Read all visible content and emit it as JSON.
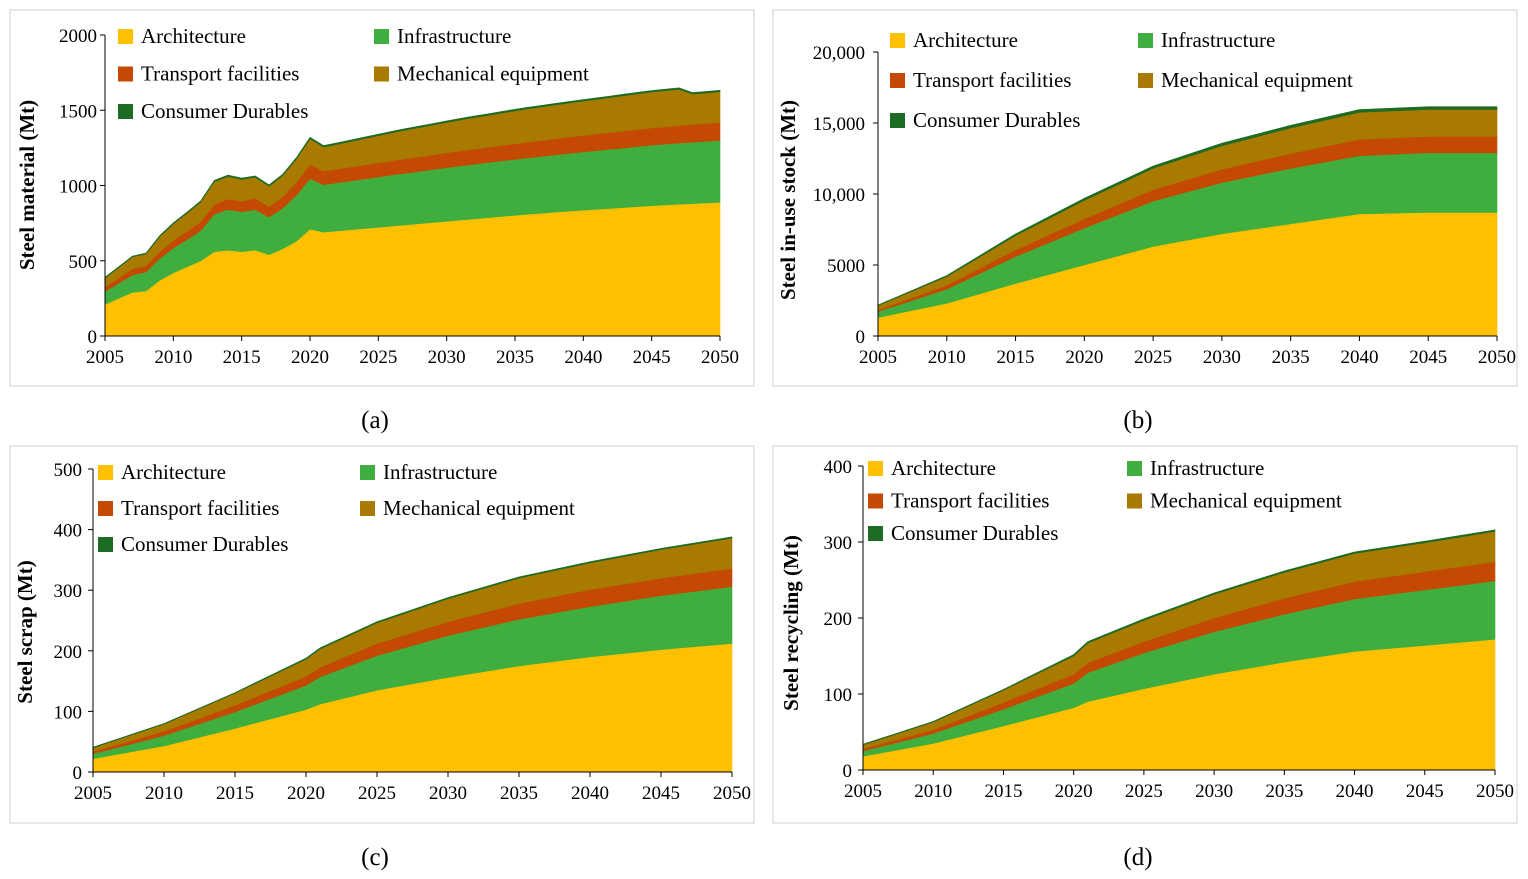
{
  "colors": {
    "Architecture": "#ffc000",
    "Infrastructure": "#3fae3f",
    "Transport facilities": "#c44a04",
    "Mechanical equipment": "#a87a00",
    "Consumer Durables": "#1e6b23"
  },
  "chart_data": [
    {
      "type": "area",
      "stacked": true,
      "panel_label": "(a)",
      "ylabel": "Steel material  (Mt)",
      "xlabel": "",
      "xlim": [
        2005,
        2050
      ],
      "ylim": [
        0,
        2000
      ],
      "xticks": [
        2005,
        2010,
        2015,
        2020,
        2025,
        2030,
        2035,
        2040,
        2045,
        2050
      ],
      "yticks": [
        0,
        500,
        1000,
        1500,
        2000
      ],
      "ytick_labels": [
        "0",
        "500",
        "1000",
        "1500",
        "2000"
      ],
      "legend": [
        "Architecture",
        "Infrastructure",
        "Transport facilities",
        "Mechanical equipment",
        "Consumer Durables"
      ],
      "x": [
        2005,
        2006,
        2007,
        2008,
        2009,
        2010,
        2011,
        2012,
        2013,
        2014,
        2015,
        2016,
        2017,
        2018,
        2019,
        2020,
        2021,
        2022,
        2023,
        2024,
        2025,
        2026,
        2027,
        2028,
        2029,
        2030,
        2031,
        2032,
        2033,
        2034,
        2035,
        2036,
        2037,
        2038,
        2039,
        2040,
        2041,
        2042,
        2043,
        2044,
        2045,
        2046,
        2047,
        2048,
        2049,
        2050
      ],
      "series": [
        {
          "name": "Architecture",
          "values": [
            210,
            250,
            290,
            300,
            370,
            420,
            460,
            500,
            560,
            570,
            560,
            570,
            540,
            580,
            630,
            710,
            690,
            698,
            706,
            714,
            722,
            730,
            738,
            746,
            754,
            762,
            770,
            778,
            786,
            794,
            802,
            809,
            816,
            823,
            830,
            836,
            842,
            848,
            854,
            860,
            866,
            871,
            876,
            880,
            884,
            888
          ]
        },
        {
          "name": "Infrastructure",
          "values": [
            85,
            100,
            115,
            125,
            145,
            165,
            180,
            200,
            250,
            270,
            265,
            270,
            250,
            270,
            305,
            335,
            315,
            320,
            325,
            330,
            335,
            340,
            344,
            348,
            352,
            356,
            360,
            363,
            366,
            369,
            372,
            375,
            378,
            381,
            384,
            387,
            390,
            393,
            396,
            399,
            402,
            404,
            406,
            408,
            410,
            412
          ]
        },
        {
          "name": "Transport facilities",
          "values": [
            30,
            35,
            40,
            40,
            45,
            50,
            55,
            60,
            65,
            70,
            70,
            75,
            70,
            75,
            85,
            95,
            90,
            91,
            92,
            93,
            94,
            95,
            96,
            97,
            98,
            99,
            100,
            101,
            102,
            103,
            104,
            105,
            106,
            107,
            108,
            109,
            110,
            111,
            112,
            113,
            114,
            115,
            116,
            117,
            118,
            119
          ]
        },
        {
          "name": "Mechanical equipment",
          "values": [
            60,
            70,
            80,
            80,
            100,
            110,
            120,
            130,
            150,
            150,
            145,
            140,
            135,
            140,
            155,
            170,
            160,
            165,
            170,
            175,
            180,
            185,
            190,
            194,
            198,
            202,
            206,
            209,
            212,
            215,
            218,
            221,
            223,
            225,
            227,
            229,
            231,
            233,
            235,
            237,
            239,
            240,
            241,
            202,
            203,
            204
          ]
        },
        {
          "name": "Consumer Durables",
          "values": [
            5,
            5,
            6,
            6,
            7,
            7,
            8,
            8,
            9,
            9,
            9,
            9,
            9,
            10,
            10,
            10,
            10,
            10,
            10,
            10,
            10,
            10,
            10,
            10,
            10,
            10,
            10,
            10,
            10,
            10,
            10,
            10,
            10,
            10,
            10,
            10,
            10,
            10,
            10,
            10,
            10,
            10,
            10,
            10,
            10,
            10
          ]
        }
      ]
    },
    {
      "type": "area",
      "stacked": true,
      "panel_label": "(b)",
      "ylabel": "Steel in-use stock (Mt)",
      "xlabel": "",
      "xlim": [
        2005,
        2050
      ],
      "ylim": [
        0,
        20000
      ],
      "xticks": [
        2005,
        2010,
        2015,
        2020,
        2025,
        2030,
        2035,
        2040,
        2045,
        2050
      ],
      "yticks": [
        0,
        5000,
        10000,
        15000,
        20000
      ],
      "ytick_labels": [
        "0",
        "5000",
        "10,000",
        "15,000",
        "20,000"
      ],
      "legend": [
        "Architecture",
        "Infrastructure",
        "Transport facilities",
        "Mechanical equipment",
        "Consumer Durables"
      ],
      "x": [
        2005,
        2010,
        2015,
        2020,
        2025,
        2030,
        2035,
        2040,
        2045,
        2050
      ],
      "series": [
        {
          "name": "Architecture",
          "values": [
            1300,
            2300,
            3700,
            5000,
            6300,
            7200,
            7900,
            8600,
            8700,
            8700
          ]
        },
        {
          "name": "Infrastructure",
          "values": [
            420,
            1000,
            1900,
            2600,
            3200,
            3600,
            3900,
            4100,
            4200,
            4200
          ]
        },
        {
          "name": "Transport facilities",
          "values": [
            120,
            280,
            470,
            650,
            800,
            950,
            1050,
            1150,
            1150,
            1150
          ]
        },
        {
          "name": "Mechanical equipment",
          "values": [
            300,
            600,
            1000,
            1300,
            1500,
            1650,
            1800,
            1900,
            1900,
            1900
          ]
        },
        {
          "name": "Consumer Durables",
          "values": [
            40,
            80,
            120,
            150,
            170,
            180,
            190,
            200,
            200,
            200
          ]
        }
      ]
    },
    {
      "type": "area",
      "stacked": true,
      "panel_label": "(c)",
      "ylabel": "Steel scrap  (Mt)",
      "xlabel": "",
      "xlim": [
        2005,
        2050
      ],
      "ylim": [
        0,
        500
      ],
      "xticks": [
        2005,
        2010,
        2015,
        2020,
        2025,
        2030,
        2035,
        2040,
        2045,
        2050
      ],
      "yticks": [
        0,
        100,
        200,
        300,
        400,
        500
      ],
      "ytick_labels": [
        "0",
        "100",
        "200",
        "300",
        "400",
        "500"
      ],
      "legend": [
        "Architecture",
        "Infrastructure",
        "Transport facilities",
        "Mechanical equipment",
        "Consumer Durables"
      ],
      "x": [
        2005,
        2010,
        2015,
        2020,
        2021,
        2025,
        2030,
        2035,
        2040,
        2045,
        2050
      ],
      "series": [
        {
          "name": "Architecture",
          "values": [
            22,
            43,
            72,
            103,
            112,
            135,
            156,
            175,
            190,
            202,
            212
          ]
        },
        {
          "name": "Infrastructure",
          "values": [
            8,
            17,
            27,
            40,
            45,
            57,
            69,
            77,
            83,
            89,
            94
          ]
        },
        {
          "name": "Transport facilities",
          "values": [
            4,
            7,
            11,
            15,
            16,
            20,
            23,
            26,
            28,
            29,
            30
          ]
        },
        {
          "name": "Mechanical equipment",
          "values": [
            6,
            12,
            20,
            28,
            30,
            34,
            38,
            42,
            44,
            47,
            50
          ]
        },
        {
          "name": "Consumer Durables",
          "values": [
            1,
            1,
            1,
            2,
            2,
            2,
            2,
            2,
            2,
            2,
            2
          ]
        }
      ]
    },
    {
      "type": "area",
      "stacked": true,
      "panel_label": "(d)",
      "ylabel": "Steel recycling  (Mt)",
      "xlabel": "",
      "xlim": [
        2005,
        2050
      ],
      "ylim": [
        0,
        400
      ],
      "xticks": [
        2005,
        2010,
        2015,
        2020,
        2025,
        2030,
        2035,
        2040,
        2045,
        2050
      ],
      "yticks": [
        0,
        100,
        200,
        300,
        400
      ],
      "ytick_labels": [
        "0",
        "100",
        "200",
        "300",
        "400"
      ],
      "legend": [
        "Architecture",
        "Infrastructure",
        "Transport facilities",
        "Mechanical equipment",
        "Consumer Durables"
      ],
      "x": [
        2005,
        2010,
        2015,
        2020,
        2021,
        2025,
        2030,
        2035,
        2040,
        2045,
        2050
      ],
      "series": [
        {
          "name": "Architecture",
          "values": [
            18,
            35,
            58,
            82,
            90,
            107,
            126,
            142,
            156,
            164,
            172
          ]
        },
        {
          "name": "Infrastructure",
          "values": [
            7,
            13,
            22,
            32,
            38,
            47,
            56,
            63,
            69,
            73,
            77
          ]
        },
        {
          "name": "Transport facilities",
          "values": [
            3,
            5,
            9,
            12,
            13,
            15,
            18,
            21,
            23,
            24,
            25
          ]
        },
        {
          "name": "Mechanical equipment",
          "values": [
            5,
            10,
            16,
            24,
            26,
            28,
            31,
            34,
            37,
            38,
            40
          ]
        },
        {
          "name": "Consumer Durables",
          "values": [
            1,
            1,
            1,
            2,
            2,
            2,
            2,
            2,
            2,
            2,
            2
          ]
        }
      ]
    }
  ]
}
